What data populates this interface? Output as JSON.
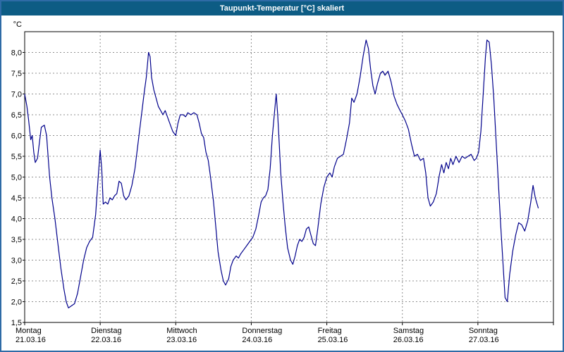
{
  "window": {
    "title": "Taupunkt-Temperatur [°C] skaliert",
    "colors": {
      "titlebar": "#0d5c84",
      "frame": "#2e6ba6",
      "plot_border": "#000000",
      "grid": "#909090",
      "line": "#00008b",
      "background": "#ffffff",
      "text": "#000000"
    }
  },
  "chart_data": {
    "type": "line",
    "title": "Taupunkt-Temperatur [°C] skaliert",
    "ylabel": "°C",
    "ylim": [
      1.5,
      8.5
    ],
    "ytick_step": 0.5,
    "ytick_labels": [
      "1,5",
      "2,0",
      "2,5",
      "3,0",
      "3,5",
      "4,0",
      "4,5",
      "5,0",
      "5,5",
      "6,0",
      "6,5",
      "7,0",
      "7,5",
      "8,0"
    ],
    "grid": "dashed",
    "legend_position": "none",
    "x_days": [
      {
        "name": "Montag",
        "date": "21.03.16"
      },
      {
        "name": "Dienstag",
        "date": "22.03.16"
      },
      {
        "name": "Mittwoch",
        "date": "23.03.16"
      },
      {
        "name": "Donnerstag",
        "date": "24.03.16"
      },
      {
        "name": "Freitag",
        "date": "25.03.16"
      },
      {
        "name": "Samstag",
        "date": "26.03.16"
      },
      {
        "name": "Sonntag",
        "date": "27.03.16"
      }
    ],
    "xlim_days": [
      0,
      7
    ],
    "series": [
      {
        "name": "Taupunkt-Temperatur",
        "color": "#00008b",
        "points": [
          [
            0.0,
            7.0
          ],
          [
            0.03,
            6.7
          ],
          [
            0.05,
            6.4
          ],
          [
            0.08,
            5.9
          ],
          [
            0.1,
            6.0
          ],
          [
            0.12,
            5.6
          ],
          [
            0.14,
            5.35
          ],
          [
            0.17,
            5.45
          ],
          [
            0.2,
            5.9
          ],
          [
            0.22,
            6.2
          ],
          [
            0.26,
            6.25
          ],
          [
            0.29,
            6.0
          ],
          [
            0.31,
            5.5
          ],
          [
            0.33,
            5.0
          ],
          [
            0.36,
            4.5
          ],
          [
            0.4,
            4.0
          ],
          [
            0.44,
            3.4
          ],
          [
            0.48,
            2.8
          ],
          [
            0.52,
            2.3
          ],
          [
            0.55,
            2.0
          ],
          [
            0.58,
            1.85
          ],
          [
            0.62,
            1.9
          ],
          [
            0.66,
            1.95
          ],
          [
            0.7,
            2.2
          ],
          [
            0.74,
            2.6
          ],
          [
            0.78,
            3.0
          ],
          [
            0.82,
            3.3
          ],
          [
            0.86,
            3.45
          ],
          [
            0.9,
            3.55
          ],
          [
            0.94,
            4.1
          ],
          [
            0.97,
            4.9
          ],
          [
            1.0,
            5.65
          ],
          [
            1.02,
            5.2
          ],
          [
            1.04,
            4.35
          ],
          [
            1.07,
            4.4
          ],
          [
            1.1,
            4.35
          ],
          [
            1.13,
            4.5
          ],
          [
            1.16,
            4.45
          ],
          [
            1.19,
            4.55
          ],
          [
            1.22,
            4.6
          ],
          [
            1.25,
            4.9
          ],
          [
            1.28,
            4.85
          ],
          [
            1.31,
            4.55
          ],
          [
            1.34,
            4.45
          ],
          [
            1.38,
            4.55
          ],
          [
            1.42,
            4.8
          ],
          [
            1.46,
            5.2
          ],
          [
            1.5,
            5.8
          ],
          [
            1.54,
            6.4
          ],
          [
            1.58,
            7.0
          ],
          [
            1.61,
            7.4
          ],
          [
            1.64,
            8.0
          ],
          [
            1.66,
            7.9
          ],
          [
            1.68,
            7.4
          ],
          [
            1.71,
            7.1
          ],
          [
            1.74,
            6.9
          ],
          [
            1.77,
            6.7
          ],
          [
            1.8,
            6.6
          ],
          [
            1.83,
            6.5
          ],
          [
            1.86,
            6.6
          ],
          [
            1.89,
            6.45
          ],
          [
            1.92,
            6.3
          ],
          [
            1.96,
            6.1
          ],
          [
            2.0,
            6.0
          ],
          [
            2.03,
            6.3
          ],
          [
            2.06,
            6.5
          ],
          [
            2.1,
            6.5
          ],
          [
            2.13,
            6.45
          ],
          [
            2.16,
            6.55
          ],
          [
            2.2,
            6.5
          ],
          [
            2.24,
            6.55
          ],
          [
            2.28,
            6.5
          ],
          [
            2.31,
            6.3
          ],
          [
            2.34,
            6.05
          ],
          [
            2.37,
            5.95
          ],
          [
            2.4,
            5.6
          ],
          [
            2.43,
            5.4
          ],
          [
            2.46,
            5.0
          ],
          [
            2.5,
            4.4
          ],
          [
            2.53,
            3.8
          ],
          [
            2.56,
            3.2
          ],
          [
            2.6,
            2.75
          ],
          [
            2.63,
            2.5
          ],
          [
            2.66,
            2.4
          ],
          [
            2.7,
            2.55
          ],
          [
            2.73,
            2.85
          ],
          [
            2.76,
            3.0
          ],
          [
            2.8,
            3.1
          ],
          [
            2.83,
            3.05
          ],
          [
            2.86,
            3.15
          ],
          [
            2.9,
            3.25
          ],
          [
            2.94,
            3.35
          ],
          [
            2.98,
            3.45
          ],
          [
            3.02,
            3.55
          ],
          [
            3.06,
            3.75
          ],
          [
            3.1,
            4.1
          ],
          [
            3.13,
            4.4
          ],
          [
            3.16,
            4.5
          ],
          [
            3.19,
            4.55
          ],
          [
            3.22,
            4.7
          ],
          [
            3.25,
            5.2
          ],
          [
            3.28,
            6.0
          ],
          [
            3.31,
            6.6
          ],
          [
            3.33,
            7.0
          ],
          [
            3.35,
            6.5
          ],
          [
            3.37,
            5.8
          ],
          [
            3.39,
            5.1
          ],
          [
            3.42,
            4.4
          ],
          [
            3.45,
            3.8
          ],
          [
            3.48,
            3.3
          ],
          [
            3.52,
            3.0
          ],
          [
            3.55,
            2.9
          ],
          [
            3.58,
            3.1
          ],
          [
            3.61,
            3.35
          ],
          [
            3.64,
            3.5
          ],
          [
            3.67,
            3.45
          ],
          [
            3.7,
            3.55
          ],
          [
            3.73,
            3.75
          ],
          [
            3.76,
            3.8
          ],
          [
            3.79,
            3.6
          ],
          [
            3.82,
            3.4
          ],
          [
            3.85,
            3.35
          ],
          [
            3.88,
            3.75
          ],
          [
            3.92,
            4.35
          ],
          [
            3.96,
            4.75
          ],
          [
            4.0,
            5.0
          ],
          [
            4.04,
            5.1
          ],
          [
            4.07,
            5.0
          ],
          [
            4.1,
            5.25
          ],
          [
            4.14,
            5.45
          ],
          [
            4.18,
            5.5
          ],
          [
            4.22,
            5.55
          ],
          [
            4.26,
            5.9
          ],
          [
            4.3,
            6.3
          ],
          [
            4.33,
            6.9
          ],
          [
            4.36,
            6.8
          ],
          [
            4.4,
            7.0
          ],
          [
            4.44,
            7.4
          ],
          [
            4.48,
            7.9
          ],
          [
            4.52,
            8.3
          ],
          [
            4.55,
            8.1
          ],
          [
            4.58,
            7.6
          ],
          [
            4.61,
            7.2
          ],
          [
            4.64,
            7.0
          ],
          [
            4.67,
            7.25
          ],
          [
            4.71,
            7.5
          ],
          [
            4.74,
            7.55
          ],
          [
            4.77,
            7.45
          ],
          [
            4.81,
            7.55
          ],
          [
            4.85,
            7.3
          ],
          [
            4.89,
            6.95
          ],
          [
            4.93,
            6.75
          ],
          [
            4.97,
            6.6
          ],
          [
            5.0,
            6.5
          ],
          [
            5.04,
            6.35
          ],
          [
            5.08,
            6.15
          ],
          [
            5.12,
            5.8
          ],
          [
            5.16,
            5.5
          ],
          [
            5.2,
            5.55
          ],
          [
            5.24,
            5.4
          ],
          [
            5.28,
            5.45
          ],
          [
            5.31,
            5.1
          ],
          [
            5.34,
            4.5
          ],
          [
            5.37,
            4.3
          ],
          [
            5.41,
            4.4
          ],
          [
            5.45,
            4.6
          ],
          [
            5.49,
            5.05
          ],
          [
            5.52,
            5.3
          ],
          [
            5.55,
            5.1
          ],
          [
            5.58,
            5.35
          ],
          [
            5.61,
            5.2
          ],
          [
            5.64,
            5.45
          ],
          [
            5.67,
            5.3
          ],
          [
            5.71,
            5.5
          ],
          [
            5.75,
            5.35
          ],
          [
            5.79,
            5.5
          ],
          [
            5.83,
            5.45
          ],
          [
            5.87,
            5.5
          ],
          [
            5.91,
            5.55
          ],
          [
            5.95,
            5.4
          ],
          [
            5.98,
            5.45
          ],
          [
            6.01,
            5.6
          ],
          [
            6.04,
            6.1
          ],
          [
            6.07,
            7.0
          ],
          [
            6.1,
            7.9
          ],
          [
            6.12,
            8.3
          ],
          [
            6.15,
            8.25
          ],
          [
            6.18,
            7.7
          ],
          [
            6.21,
            6.9
          ],
          [
            6.24,
            5.9
          ],
          [
            6.27,
            4.9
          ],
          [
            6.3,
            3.9
          ],
          [
            6.33,
            3.0
          ],
          [
            6.36,
            2.1
          ],
          [
            6.39,
            2.0
          ],
          [
            6.42,
            2.65
          ],
          [
            6.46,
            3.2
          ],
          [
            6.5,
            3.6
          ],
          [
            6.54,
            3.9
          ],
          [
            6.58,
            3.85
          ],
          [
            6.62,
            3.7
          ],
          [
            6.66,
            3.95
          ],
          [
            6.7,
            4.4
          ],
          [
            6.73,
            4.8
          ],
          [
            6.76,
            4.5
          ],
          [
            6.8,
            4.25
          ]
        ]
      }
    ]
  }
}
